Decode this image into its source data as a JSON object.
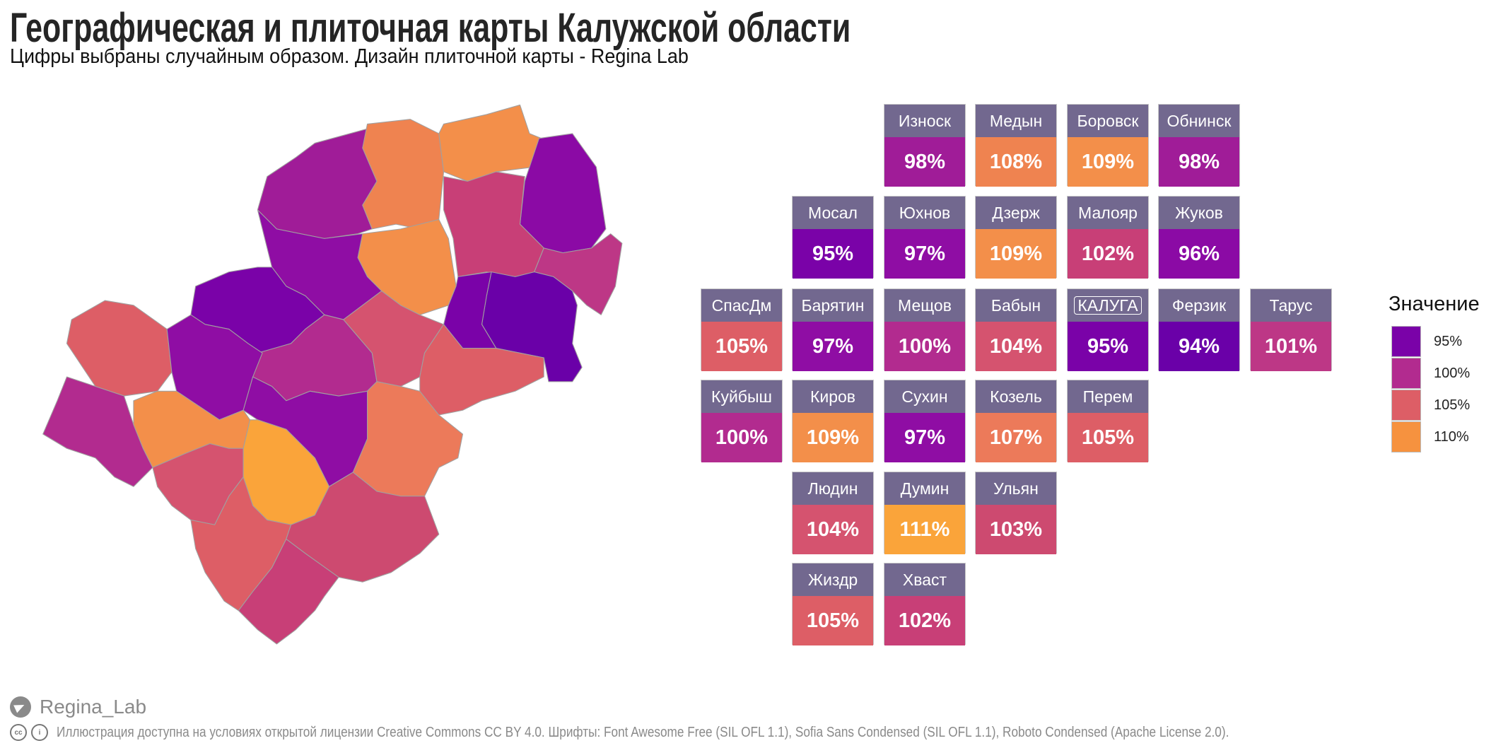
{
  "header": {
    "title": "Географическая и плиточная карты Калужской области",
    "subtitle": "Цифры выбраны случайным образом. Дизайн плиточной карты - Regina Lab"
  },
  "chart_data": {
    "type": "heatmap",
    "title": "Географическая и плиточная карты Калужской области",
    "subtitle": "Цифры выбраны случайным образом. Дизайн плиточной карты - Regina Lab",
    "unit": "%",
    "tiles": [
      {
        "label": "Износк",
        "value": 98,
        "text": "98%",
        "color": "#a01c98"
      },
      {
        "label": "Медын",
        "value": 108,
        "text": "108%",
        "color": "#ef8350"
      },
      {
        "label": "Боровск",
        "value": 109,
        "text": "109%",
        "color": "#f38f4a"
      },
      {
        "label": "Обнинск",
        "value": 98,
        "text": "98%",
        "color": "#a01c98"
      },
      {
        "label": "Мосал",
        "value": 95,
        "text": "95%",
        "color": "#7a02a8"
      },
      {
        "label": "Юхнов",
        "value": 97,
        "text": "97%",
        "color": "#8f0da4"
      },
      {
        "label": "Дзерж",
        "value": 109,
        "text": "109%",
        "color": "#f38f4a"
      },
      {
        "label": "Малояр",
        "value": 102,
        "text": "102%",
        "color": "#c83f77"
      },
      {
        "label": "Жуков",
        "value": 96,
        "text": "96%",
        "color": "#8b0aa5"
      },
      {
        "label": "СпасДм",
        "value": 105,
        "text": "105%",
        "color": "#dd5e66"
      },
      {
        "label": "Барятин",
        "value": 97,
        "text": "97%",
        "color": "#8f0da4"
      },
      {
        "label": "Мещов",
        "value": 100,
        "text": "100%",
        "color": "#b22b8f"
      },
      {
        "label": "Бабын",
        "value": 104,
        "text": "104%",
        "color": "#d5536f"
      },
      {
        "label": "КАЛУГА",
        "value": 95,
        "text": "95%",
        "color": "#7a02a8"
      },
      {
        "label": "Ферзик",
        "value": 94,
        "text": "94%",
        "color": "#6a00a8"
      },
      {
        "label": "Тарус",
        "value": 101,
        "text": "101%",
        "color": "#bd3786"
      },
      {
        "label": "Куйбыш",
        "value": 100,
        "text": "100%",
        "color": "#b22b8f"
      },
      {
        "label": "Киров",
        "value": 109,
        "text": "109%",
        "color": "#f38f4a"
      },
      {
        "label": "Сухин",
        "value": 97,
        "text": "97%",
        "color": "#8f0da4"
      },
      {
        "label": "Козель",
        "value": 107,
        "text": "107%",
        "color": "#ec7a5a"
      },
      {
        "label": "Перем",
        "value": 105,
        "text": "105%",
        "color": "#dd5e66"
      },
      {
        "label": "Людин",
        "value": 104,
        "text": "104%",
        "color": "#d5536f"
      },
      {
        "label": "Думин",
        "value": 111,
        "text": "111%",
        "color": "#faa43a"
      },
      {
        "label": "Ульян",
        "value": 103,
        "text": "103%",
        "color": "#cd4a70"
      },
      {
        "label": "Жиздр",
        "value": 105,
        "text": "105%",
        "color": "#dd5e66"
      },
      {
        "label": "Хваст",
        "value": 102,
        "text": "102%",
        "color": "#c83f77"
      }
    ],
    "legend": {
      "title": "Значение",
      "position": "right",
      "items": [
        {
          "label": "95%",
          "color": "#7a02a8"
        },
        {
          "label": "100%",
          "color": "#b22b8f"
        },
        {
          "label": "105%",
          "color": "#dd5e66"
        },
        {
          "label": "110%",
          "color": "#f6923f"
        }
      ]
    }
  },
  "footer": {
    "author": "Regina_Lab",
    "license": "Иллюстрация доступна на условиях открытой лицензии Creative Commons CC BY 4.0. Шрифты: Font  Awesome Free (SIL OFL 1.1), Sofia Sans Condensed (SIL OFL 1.1), Roboto Condensed (Apache License 2.0).",
    "cc_badge": "cc"
  }
}
